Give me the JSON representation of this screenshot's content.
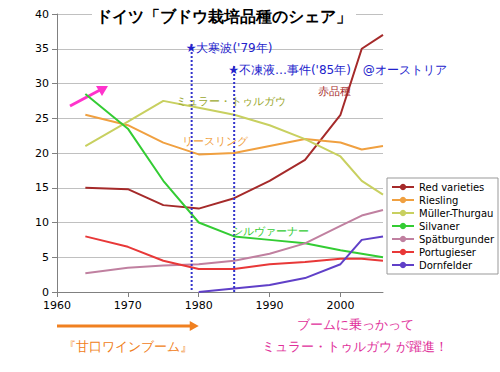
{
  "chart_data": {
    "type": "line",
    "title": "ドイツ「ブドウ栽培品種のシェア」",
    "x": [
      1964,
      1970,
      1975,
      1980,
      1985,
      1990,
      1995,
      2000,
      2003,
      2006
    ],
    "series": [
      {
        "name": "Red varieties",
        "color": "#a52a2a",
        "values": [
          15,
          14.8,
          12.5,
          12,
          13.5,
          16,
          19,
          25.5,
          35,
          37
        ]
      },
      {
        "name": "Riesling",
        "color": "#f0a040",
        "values": [
          25.5,
          24,
          21.5,
          19.8,
          20,
          21,
          22,
          21.5,
          20.5,
          21
        ]
      },
      {
        "name": "Müller-Thurgau",
        "color": "#c8d060",
        "values": [
          21,
          24.5,
          27.5,
          26.5,
          25.5,
          24,
          22,
          19.5,
          16,
          14
        ]
      },
      {
        "name": "Silvaner",
        "color": "#33cc33",
        "values": [
          28.5,
          23.5,
          16,
          10,
          8,
          7.5,
          7,
          6,
          5.5,
          5
        ]
      },
      {
        "name": "Spätburgunder",
        "color": "#c080a0",
        "values": [
          2.7,
          3.5,
          3.8,
          4,
          4.5,
          5.5,
          7,
          9.5,
          11,
          11.8
        ]
      },
      {
        "name": "Portugieser",
        "color": "#e83838",
        "values": [
          8,
          6.5,
          4.5,
          3.3,
          3.3,
          4,
          4.3,
          4.8,
          4.8,
          4.5
        ]
      },
      {
        "name": "Dornfelder",
        "color": "#6040c8",
        "values": [
          null,
          null,
          null,
          0,
          0.5,
          1,
          2,
          4,
          7.5,
          8
        ]
      }
    ],
    "xlim": [
      1960,
      2006
    ],
    "xticks": [
      1960,
      1970,
      1980,
      1990,
      2000
    ],
    "ylim": [
      0,
      40
    ],
    "yticks": [
      0,
      5,
      10,
      15,
      20,
      25,
      30,
      35,
      40
    ],
    "grid": true,
    "legend": "right",
    "annotations": [
      {
        "text": "赤品種",
        "series": "Red varieties"
      },
      {
        "text": "ミュラー・トゥルガウ",
        "series": "Müller-Thurgau"
      },
      {
        "text": "リースリング",
        "series": "Riesling"
      },
      {
        "text": "シルヴァーナー",
        "series": "Silvaner"
      }
    ],
    "events": [
      {
        "x": 1979,
        "text": "★大寒波('79年)"
      },
      {
        "x": 1985,
        "text": "★不凍液…事件('85年)　@オーストリア"
      }
    ],
    "periods": [
      {
        "from": 1960,
        "to": 1980,
        "text": "『甘口ワインブーム』"
      }
    ],
    "notes": [
      "ブームに乗っかって",
      "ミュラー・トゥルガウ が躍進！"
    ]
  }
}
